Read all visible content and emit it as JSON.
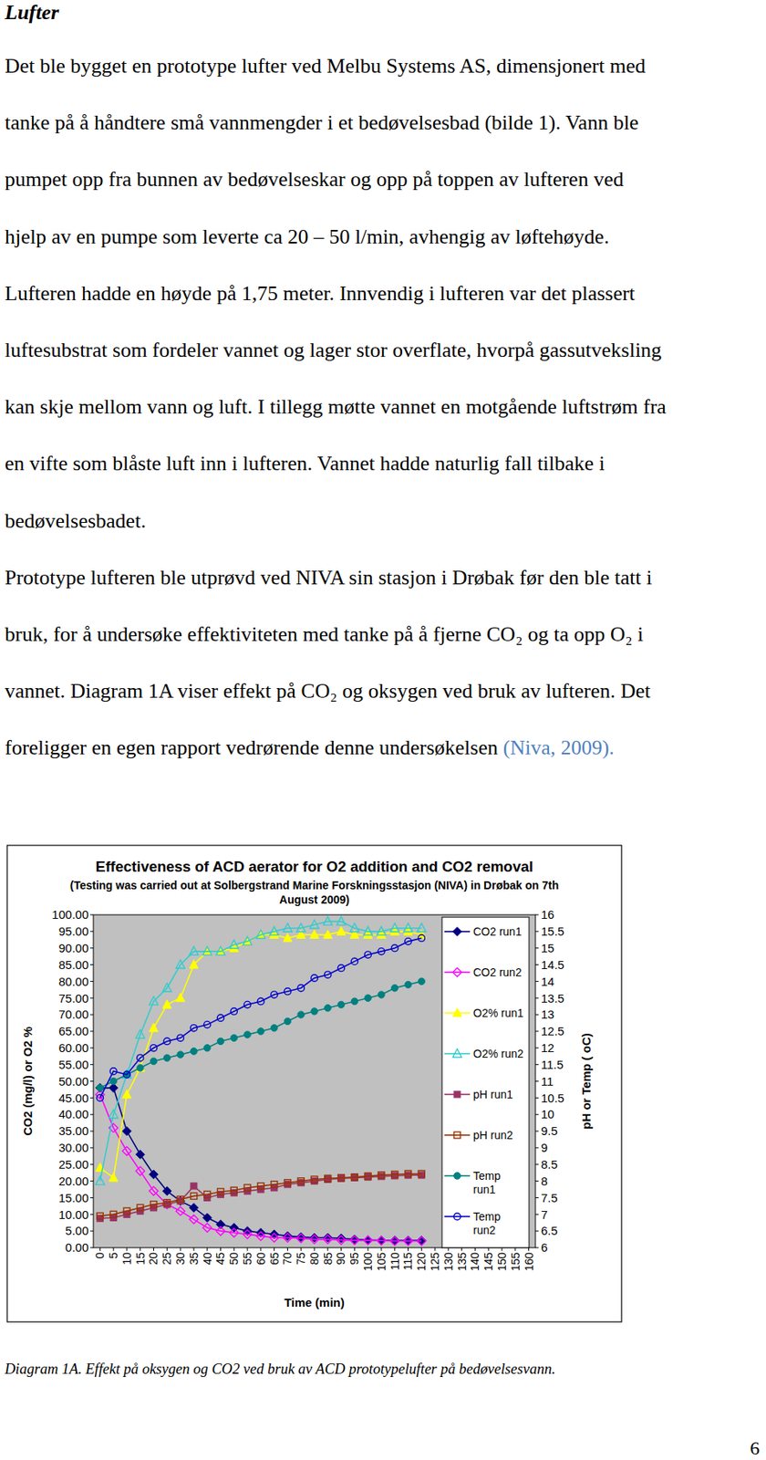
{
  "document": {
    "title": "Lufter",
    "paragraphs": [
      {
        "lines": [
          "Det ble bygget en prototype lufter ved Melbu Systems AS, dimensjonert med",
          "tanke på å håndtere små vannmengder i et bedøvelsesbad (bilde 1). Vann ble",
          "pumpet opp fra bunnen av bedøvelseskar og opp på toppen av lufteren ved",
          "hjelp av en pumpe som leverte ca 20 – 50 l/min, avhengig av løftehøyde.",
          "Lufteren hadde en høyde på 1,75 meter. Innvendig i lufteren var det plassert",
          "luftesubstrat som fordeler vannet og lager stor overflate, hvorpå gassutveksling",
          "kan skje mellom vann og luft. I tillegg møtte vannet en motgående luftstrøm fra",
          "en vifte som blåste luft inn i lufteren. Vannet hadde naturlig fall tilbake i",
          "bedøvelsesbadet."
        ]
      },
      {
        "lines": [
          "Prototype lufteren ble utprøvd ved NIVA sin stasjon i Drøbak før den ble tatt i",
          "bruk, for å undersøke effektiviteten med tanke på å fjerne CO₂ og ta opp O₂ i",
          "vannet. Diagram 1A viser effekt på CO₂ og oksygen ved bruk av lufteren. Det",
          "foreligger en egen rapport vedrørende denne undersøkelsen"
        ],
        "citation": {
          "text": "(Niva, 2009).",
          "color": "#4f81bd"
        }
      }
    ],
    "caption": "Diagram 1A. Effekt på oksygen og CO2 ved bruk av ACD prototypelufter på bedøvelsesvann.",
    "page_number": "6"
  },
  "chart_data": {
    "type": "line",
    "title": "Effectiveness of ACD aerator for O2 addition and CO2 removal",
    "subtitle": "(Testing was carried out at Solbergstrand Marine Forskningsstasjon (NIVA) in Drøbak on 7th August 2009)",
    "x_label": "Time (min)",
    "y_label": "CO2 (mg/l) or O2 %",
    "y2_label": "pH or Temp ( oC)",
    "x": [
      0,
      5,
      10,
      15,
      20,
      25,
      30,
      35,
      40,
      45,
      50,
      55,
      60,
      65,
      70,
      75,
      80,
      85,
      90,
      95,
      100,
      105,
      110,
      115,
      120
    ],
    "xlim": [
      -2.5,
      162.5
    ],
    "xticks": [
      0,
      5,
      10,
      15,
      20,
      25,
      30,
      35,
      40,
      45,
      50,
      55,
      60,
      65,
      70,
      75,
      80,
      85,
      90,
      95,
      100,
      105,
      110,
      115,
      120,
      125,
      130,
      135,
      140,
      145,
      150,
      155,
      160
    ],
    "ylim": [
      0,
      100
    ],
    "yticks": [
      {
        "value": 0,
        "label": "0.00"
      },
      {
        "value": 5,
        "label": "5.00"
      },
      {
        "value": 10,
        "label": "10.00"
      },
      {
        "value": 15,
        "label": "15.00"
      },
      {
        "value": 20,
        "label": "20.00"
      },
      {
        "value": 25,
        "label": "25.00"
      },
      {
        "value": 30,
        "label": "30.00"
      },
      {
        "value": 35,
        "label": "35.00"
      },
      {
        "value": 40,
        "label": "40.00"
      },
      {
        "value": 45,
        "label": "45.00"
      },
      {
        "value": 50,
        "label": "50.00"
      },
      {
        "value": 55,
        "label": "55.00"
      },
      {
        "value": 60,
        "label": "60.00"
      },
      {
        "value": 65,
        "label": "65.00"
      },
      {
        "value": 70,
        "label": "70.00"
      },
      {
        "value": 75,
        "label": "75.00"
      },
      {
        "value": 80,
        "label": "80.00"
      },
      {
        "value": 85,
        "label": "85.00"
      },
      {
        "value": 90,
        "label": "90.00"
      },
      {
        "value": 95,
        "label": "95.00"
      },
      {
        "value": 100,
        "label": "100.00"
      }
    ],
    "y2lim": [
      6,
      16
    ],
    "y2ticks": [
      6,
      6.5,
      7,
      7.5,
      8,
      8.5,
      9,
      9.5,
      10,
      10.5,
      11,
      11.5,
      12,
      12.5,
      13,
      13.5,
      14,
      14.5,
      15,
      15.5,
      16
    ],
    "grid": false,
    "legend": "right",
    "series": [
      {
        "name": "CO2 run1",
        "color": "#000080",
        "marker": "diamond",
        "values": [
          48,
          48,
          35,
          28,
          22,
          17,
          14,
          12,
          9,
          7,
          6,
          5,
          4.5,
          4,
          3.5,
          3.2,
          3,
          3,
          2.8,
          2.5,
          2.3,
          2.2,
          2.2,
          2.2,
          2.2
        ]
      },
      {
        "name": "CO2 run2",
        "color": "#ff00ff",
        "marker": "diamond-open",
        "values": [
          46,
          36,
          29,
          23,
          17,
          13,
          11,
          8.5,
          6,
          5,
          4.5,
          4,
          3.5,
          3,
          3,
          2.8,
          2.5,
          2.5,
          2.3,
          2.2,
          2.2,
          2.1,
          2,
          2,
          2
        ]
      },
      {
        "name": "O2% run1",
        "color": "#ffff00",
        "marker": "triangle",
        "values": [
          24,
          21,
          46,
          54,
          66,
          73,
          75,
          85,
          89,
          89,
          90,
          92,
          94,
          94,
          93,
          94,
          94,
          94,
          95,
          94,
          94,
          94,
          95,
          95,
          94
        ]
      },
      {
        "name": "O2% run2",
        "color": "#33cccc",
        "marker": "triangle-open",
        "values": [
          20,
          40,
          52,
          64,
          74,
          78,
          85,
          89,
          89,
          89,
          91,
          92,
          94,
          95,
          96,
          96,
          97,
          98,
          98,
          96,
          95,
          95,
          96,
          96,
          96
        ]
      },
      {
        "name": "pH run1",
        "color": "#993366",
        "marker": "square",
        "axis": "y2",
        "values": [
          6.88,
          6.9,
          7.0,
          7.1,
          7.2,
          7.3,
          7.4,
          7.85,
          7.5,
          7.6,
          7.65,
          7.7,
          7.75,
          7.8,
          7.9,
          7.95,
          8.0,
          8.05,
          8.08,
          8.1,
          8.12,
          8.14,
          8.16,
          8.18,
          8.18
        ]
      },
      {
        "name": "pH run2",
        "color": "#993300",
        "marker": "square-open",
        "axis": "y2",
        "values": [
          6.95,
          7.0,
          7.1,
          7.2,
          7.3,
          7.35,
          7.45,
          7.55,
          7.6,
          7.68,
          7.72,
          7.8,
          7.85,
          7.9,
          7.95,
          8.0,
          8.05,
          8.08,
          8.1,
          8.12,
          8.15,
          8.18,
          8.2,
          8.22,
          8.22
        ]
      },
      {
        "name": "Temp run1",
        "color": "#008080",
        "marker": "circle",
        "axis": "y2",
        "values": [
          10.8,
          11.0,
          11.2,
          11.4,
          11.6,
          11.7,
          11.8,
          11.9,
          12.0,
          12.2,
          12.3,
          12.4,
          12.5,
          12.6,
          12.8,
          13.0,
          13.1,
          13.2,
          13.3,
          13.4,
          13.5,
          13.6,
          13.8,
          13.9,
          14.0
        ]
      },
      {
        "name": "Temp run2",
        "color": "#0000cc",
        "marker": "circle-open",
        "axis": "y2",
        "values": [
          10.5,
          11.3,
          11.2,
          11.7,
          12.0,
          12.2,
          12.3,
          12.6,
          12.7,
          12.9,
          13.1,
          13.3,
          13.4,
          13.6,
          13.7,
          13.8,
          14.1,
          14.2,
          14.4,
          14.6,
          14.8,
          14.9,
          15.0,
          15.2,
          15.3
        ]
      }
    ]
  }
}
